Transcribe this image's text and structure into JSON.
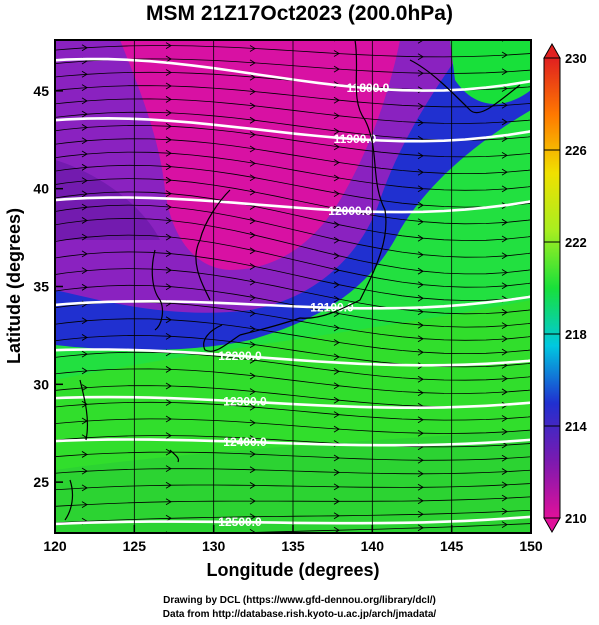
{
  "header": {
    "title": "MSM 21Z17Oct2023 (200.0hPa)"
  },
  "axes": {
    "xlabel": "Longitude (degrees)",
    "ylabel": "Latitude  (degrees)",
    "xticks": [
      "120",
      "125",
      "130",
      "135",
      "140",
      "145",
      "150"
    ],
    "yticks": [
      "25",
      "30",
      "35",
      "40",
      "45"
    ],
    "xlim": [
      120,
      150
    ],
    "ylim": [
      22.4,
      47.6
    ]
  },
  "colorbar": {
    "ticks": [
      "230",
      "226",
      "222",
      "218",
      "214",
      "210"
    ],
    "range": [
      210,
      230
    ],
    "colors": [
      "#e0109a",
      "#7a1ab0",
      "#2030d0",
      "#00c8e0",
      "#18e03a",
      "#a8ee20",
      "#f0e000",
      "#ff7a00",
      "#e02020"
    ]
  },
  "contours": {
    "values": [
      11800,
      11900,
      12000,
      12100,
      12200,
      12300,
      12400,
      12500
    ],
    "labels": [
      "11800.0",
      "11900.0",
      "12000.0",
      "12100.0",
      "12200.0",
      "12300.0",
      "12400.0",
      "12500.0"
    ],
    "color": "#ffffff"
  },
  "footer": {
    "line1": "Drawing by DCL (https://www.gfd-dennou.org/library/dcl/)",
    "line2": "Data from http://database.rish.kyoto-u.ac.jp/arch/jmadata/"
  },
  "chart_data": {
    "type": "heatmap",
    "title": "MSM 21Z17Oct2023 (200.0hPa)",
    "xlabel": "Longitude (degrees)",
    "ylabel": "Latitude  (degrees)",
    "xlim": [
      120,
      150
    ],
    "ylim": [
      22.4,
      47.6
    ],
    "shading_range": [
      210,
      230
    ],
    "contour_values": [
      11800,
      11900,
      12000,
      12100,
      12200,
      12300,
      12400,
      12500
    ],
    "grid": true
  }
}
